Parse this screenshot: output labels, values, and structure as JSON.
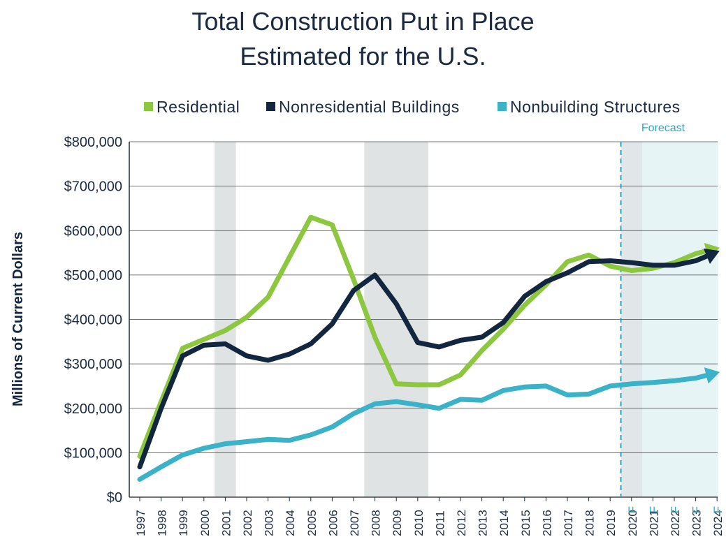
{
  "chart_data": {
    "type": "line",
    "title_line1": "Total Construction Put in Place",
    "title_line2": "Estimated for the U.S.",
    "ylabel": "Millions of Current Dollars",
    "xlabel": "",
    "ylim": [
      0,
      800000
    ],
    "y_ticks": [
      "$0",
      "$100,000",
      "$200,000",
      "$300,000",
      "$400,000",
      "$500,000",
      "$600,000",
      "$700,000",
      "$800,000"
    ],
    "y_tick_values": [
      0,
      100000,
      200000,
      300000,
      400000,
      500000,
      600000,
      700000,
      800000
    ],
    "categories": [
      "1997",
      "1998",
      "1999",
      "2000",
      "2001",
      "2002",
      "2003",
      "2004",
      "2005",
      "2006",
      "2007",
      "2008",
      "2009",
      "2010",
      "2011",
      "2012",
      "2013",
      "2014",
      "2015",
      "2016",
      "2017",
      "2018",
      "2019",
      "2020",
      "2021",
      "2022",
      "2023",
      "2024"
    ],
    "forecast_flag": "F",
    "forecast_start": "2020",
    "forecast_label": "Forecast",
    "grid": "horizontal",
    "legend_position": "top",
    "recession_shading": [
      [
        "2001",
        "2001"
      ],
      [
        "2008",
        "2010"
      ],
      [
        "2020",
        "2020"
      ]
    ],
    "series": [
      {
        "name": "Residential",
        "color": "#8dc63f",
        "values": [
          92000,
          215000,
          335000,
          355000,
          375000,
          405000,
          450000,
          540000,
          630000,
          613000,
          490000,
          360000,
          255000,
          253000,
          253000,
          275000,
          330000,
          378000,
          432000,
          478000,
          530000,
          545000,
          520000,
          510000,
          515000,
          528000,
          548000,
          560000
        ]
      },
      {
        "name": "Nonresidential Buildings",
        "color": "#13263f",
        "values": [
          68000,
          200000,
          318000,
          342000,
          345000,
          318000,
          308000,
          322000,
          345000,
          390000,
          465000,
          500000,
          435000,
          348000,
          338000,
          353000,
          360000,
          393000,
          452000,
          485000,
          505000,
          530000,
          532000,
          528000,
          522000,
          522000,
          532000,
          552000
        ]
      },
      {
        "name": "Nonbuilding Structures",
        "color": "#3bb2c7",
        "values": [
          40000,
          68000,
          95000,
          110000,
          120000,
          125000,
          130000,
          128000,
          140000,
          158000,
          188000,
          210000,
          215000,
          208000,
          200000,
          220000,
          218000,
          240000,
          248000,
          250000,
          230000,
          232000,
          250000,
          255000,
          258000,
          262000,
          268000,
          280000
        ]
      }
    ],
    "colors": {
      "axis": "#1b2a41",
      "grid": "#444444",
      "recession": "#dfe3e3",
      "forecast_bg": "#e7f4f6",
      "forecast_line": "#2aa7c4"
    }
  }
}
